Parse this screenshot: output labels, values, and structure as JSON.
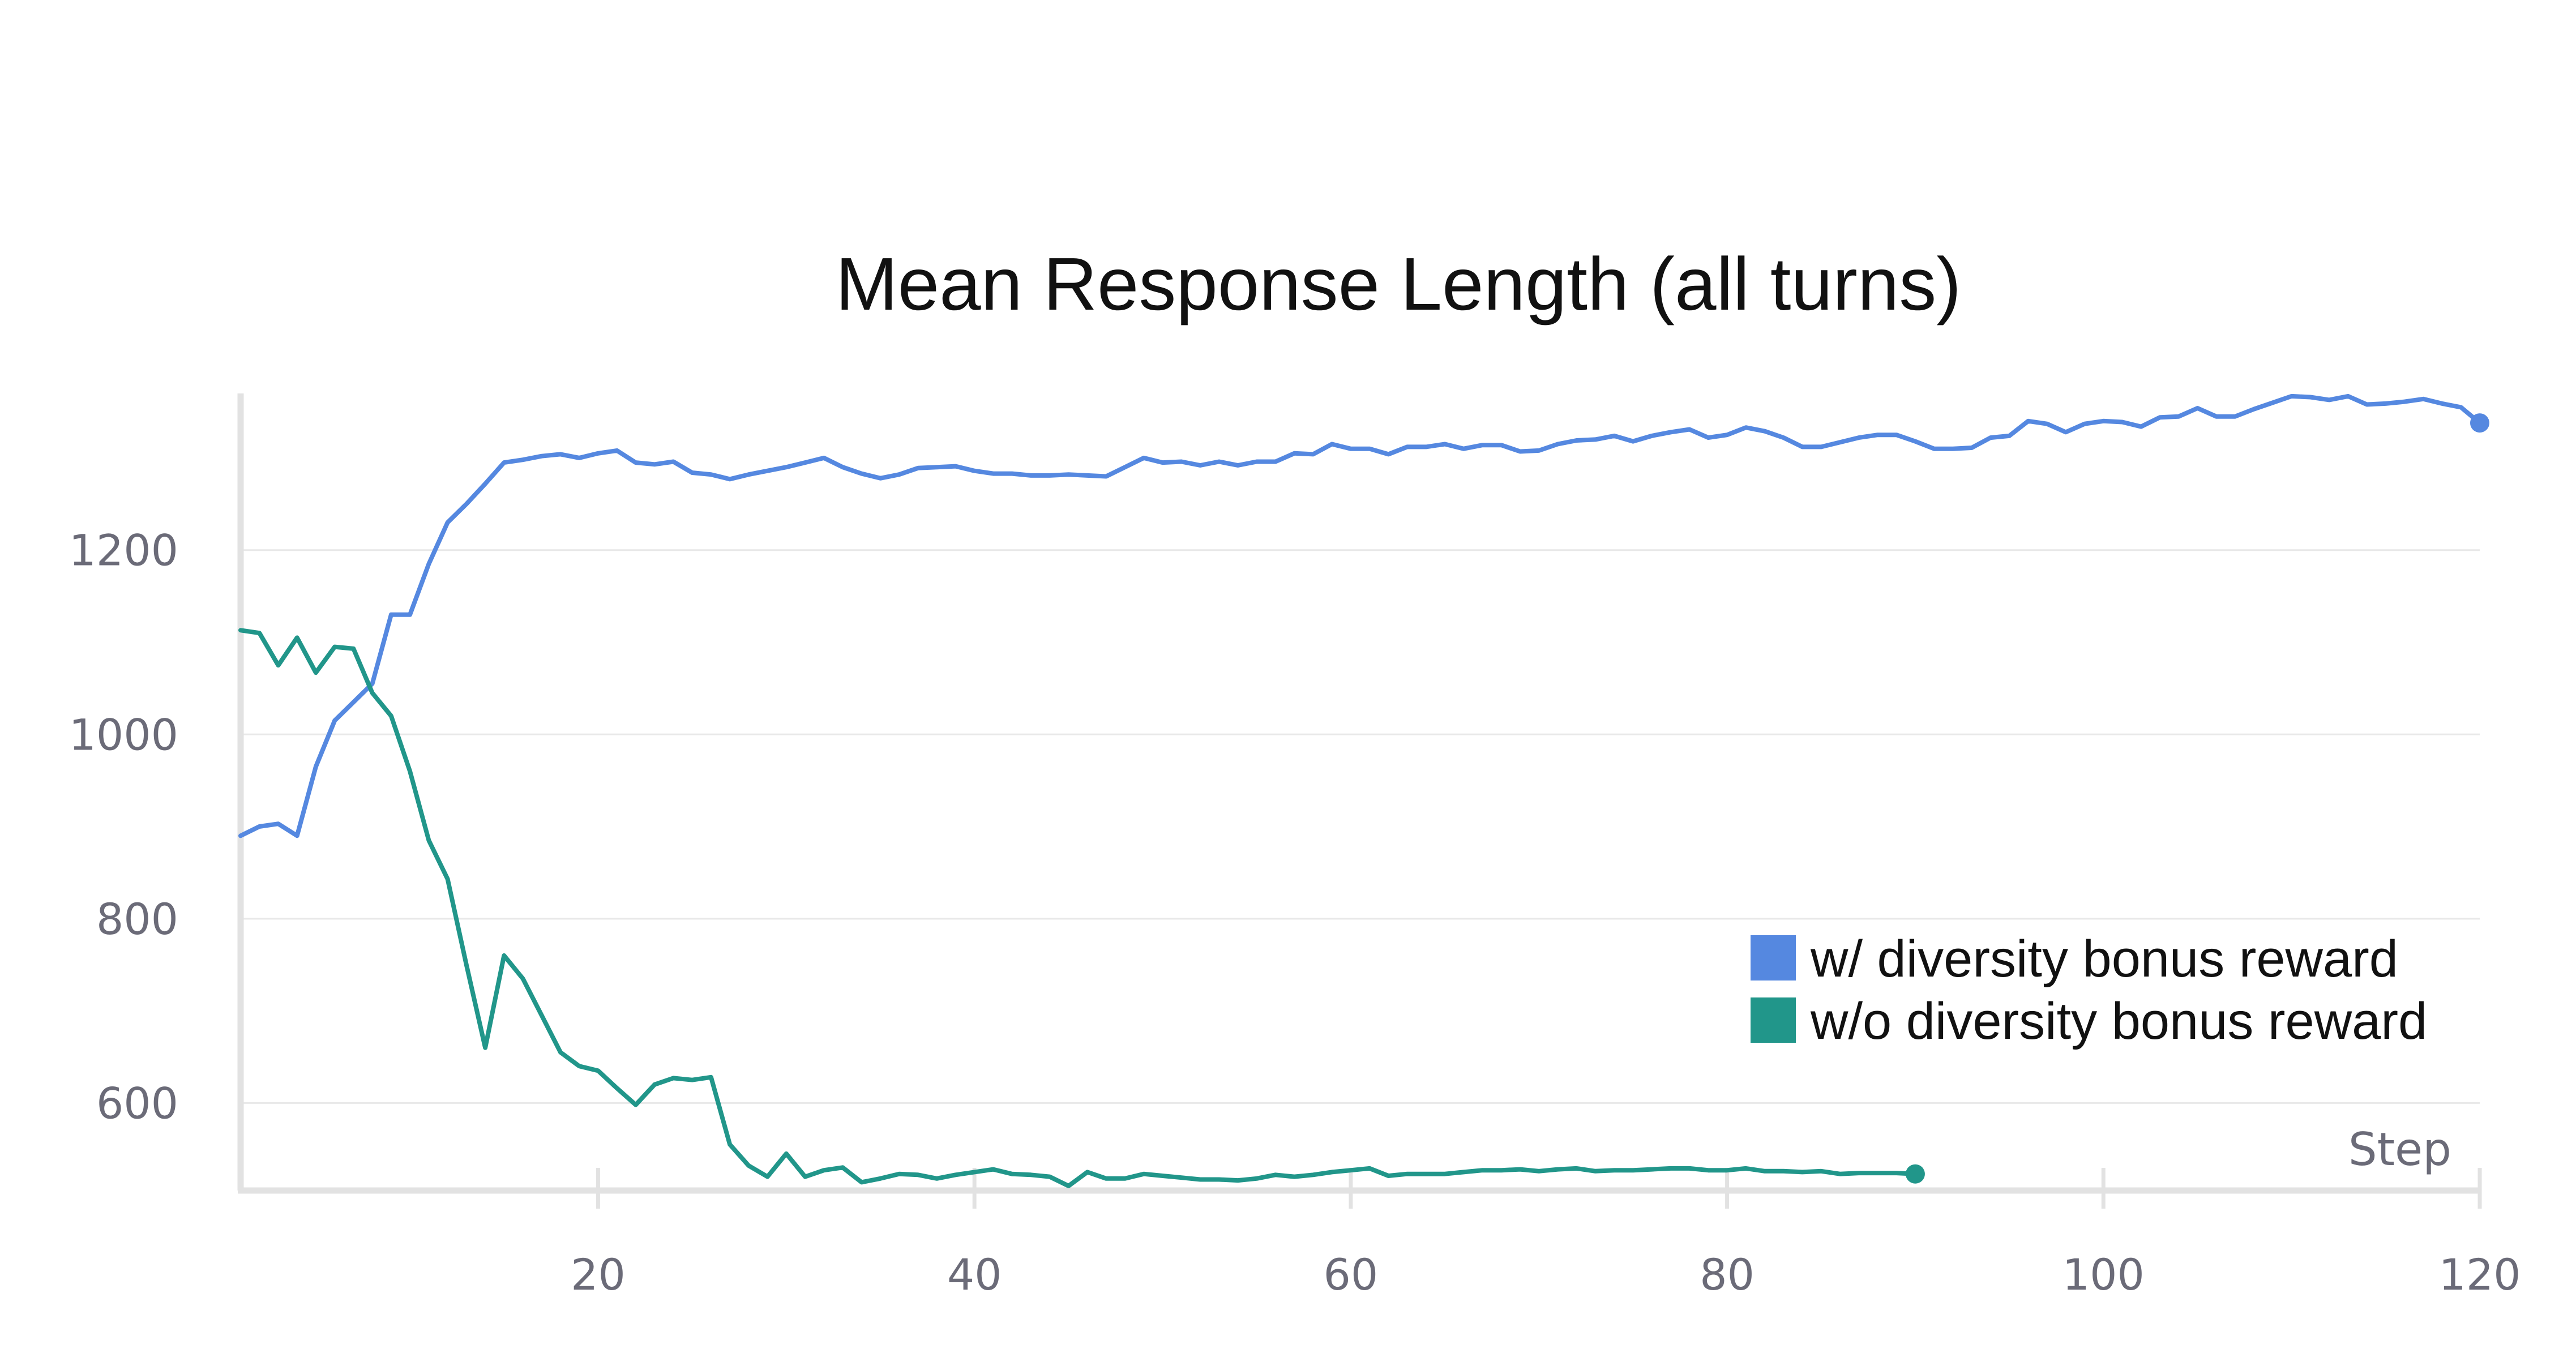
{
  "chart_data": {
    "type": "line",
    "title": "Mean Response Length (all turns)",
    "xlabel": "Step",
    "ylabel": "",
    "xlim": [
      1,
      120
    ],
    "ylim": [
      505,
      1370
    ],
    "x_ticks": [
      "20",
      "40",
      "60",
      "80",
      "100",
      "120"
    ],
    "x_tick_values": [
      20,
      40,
      60,
      80,
      100,
      120
    ],
    "y_ticks": [
      "600",
      "800",
      "1000",
      "1200"
    ],
    "y_tick_values": [
      600,
      800,
      1000,
      1200
    ],
    "grid": "horizontal",
    "legend_position": "bottom-right",
    "series": [
      {
        "name": "w/ diversity bonus reward",
        "color": "#5588e0",
        "x": [
          1,
          2,
          3,
          4,
          5,
          6,
          7,
          8,
          9,
          10,
          11,
          12,
          13,
          14,
          15,
          16,
          17,
          18,
          19,
          20,
          21,
          22,
          23,
          24,
          25,
          26,
          27,
          28,
          29,
          30,
          31,
          32,
          33,
          34,
          35,
          36,
          37,
          38,
          39,
          40,
          41,
          42,
          43,
          44,
          45,
          46,
          47,
          48,
          49,
          50,
          51,
          52,
          53,
          54,
          55,
          56,
          57,
          58,
          59,
          60,
          61,
          62,
          63,
          64,
          65,
          66,
          67,
          68,
          69,
          70,
          71,
          72,
          73,
          74,
          75,
          76,
          77,
          78,
          79,
          80,
          81,
          82,
          83,
          84,
          85,
          86,
          87,
          88,
          89,
          90,
          91,
          92,
          93,
          94,
          95,
          96,
          97,
          98,
          99,
          100,
          101,
          102,
          103,
          104,
          105,
          106,
          107,
          108,
          109,
          110,
          111,
          112,
          113,
          114,
          115,
          116,
          117,
          118,
          119,
          120
        ],
        "values": [
          890,
          900,
          903,
          890,
          965,
          1015,
          1035,
          1055,
          1130,
          1130,
          1185,
          1230,
          1250,
          1272,
          1295,
          1298,
          1302,
          1304,
          1300,
          1305,
          1308,
          1295,
          1293,
          1296,
          1284,
          1282,
          1277,
          1282,
          1286,
          1290,
          1295,
          1300,
          1290,
          1283,
          1278,
          1282,
          1289,
          1290,
          1291,
          1286,
          1283,
          1283,
          1281,
          1281,
          1282,
          1281,
          1280,
          1290,
          1300,
          1295,
          1296,
          1292,
          1296,
          1292,
          1296,
          1296,
          1305,
          1304,
          1315,
          1310,
          1310,
          1304,
          1312,
          1312,
          1315,
          1310,
          1314,
          1314,
          1307,
          1308,
          1315,
          1319,
          1320,
          1324,
          1318,
          1324,
          1328,
          1331,
          1322,
          1325,
          1333,
          1329,
          1322,
          1312,
          1312,
          1317,
          1322,
          1325,
          1325,
          1318,
          1310,
          1310,
          1311,
          1322,
          1324,
          1340,
          1337,
          1328,
          1337,
          1340,
          1339,
          1334,
          1344,
          1345,
          1354,
          1345,
          1345,
          1353,
          1360,
          1367,
          1366,
          1363,
          1367,
          1358,
          1359,
          1361,
          1364,
          1359,
          1355,
          1338
        ]
      },
      {
        "name": "w/o diversity bonus reward",
        "color": "#21968a",
        "x": [
          1,
          2,
          3,
          4,
          5,
          6,
          7,
          8,
          9,
          10,
          11,
          12,
          13,
          14,
          15,
          16,
          17,
          18,
          19,
          20,
          21,
          22,
          23,
          24,
          25,
          26,
          27,
          28,
          29,
          30,
          31,
          32,
          33,
          34,
          35,
          36,
          37,
          38,
          39,
          40,
          41,
          42,
          43,
          44,
          45,
          46,
          47,
          48,
          49,
          50,
          51,
          52,
          53,
          54,
          55,
          56,
          57,
          58,
          59,
          60,
          61,
          62,
          63,
          64,
          65,
          66,
          67,
          68,
          69,
          70,
          71,
          72,
          73,
          74,
          75,
          76,
          77,
          78,
          79,
          80,
          81,
          82,
          83,
          84,
          85,
          86,
          87,
          88,
          89,
          90
        ],
        "values": [
          1113,
          1110,
          1075,
          1105,
          1067,
          1095,
          1093,
          1045,
          1020,
          960,
          885,
          843,
          750,
          660,
          760,
          735,
          695,
          655,
          640,
          635,
          616,
          598,
          620,
          627,
          625,
          628,
          555,
          532,
          520,
          545,
          520,
          527,
          530,
          514,
          518,
          523,
          522,
          518,
          522,
          525,
          528,
          523,
          522,
          520,
          510,
          525,
          518,
          518,
          523,
          521,
          519,
          517,
          517,
          516,
          518,
          522,
          520,
          522,
          525,
          527,
          529,
          521,
          523,
          523,
          523,
          525,
          527,
          527,
          528,
          526,
          528,
          529,
          526,
          527,
          527,
          528,
          529,
          529,
          527,
          527,
          529,
          526,
          526,
          525,
          526,
          523,
          524,
          524,
          524,
          523
        ]
      }
    ]
  }
}
